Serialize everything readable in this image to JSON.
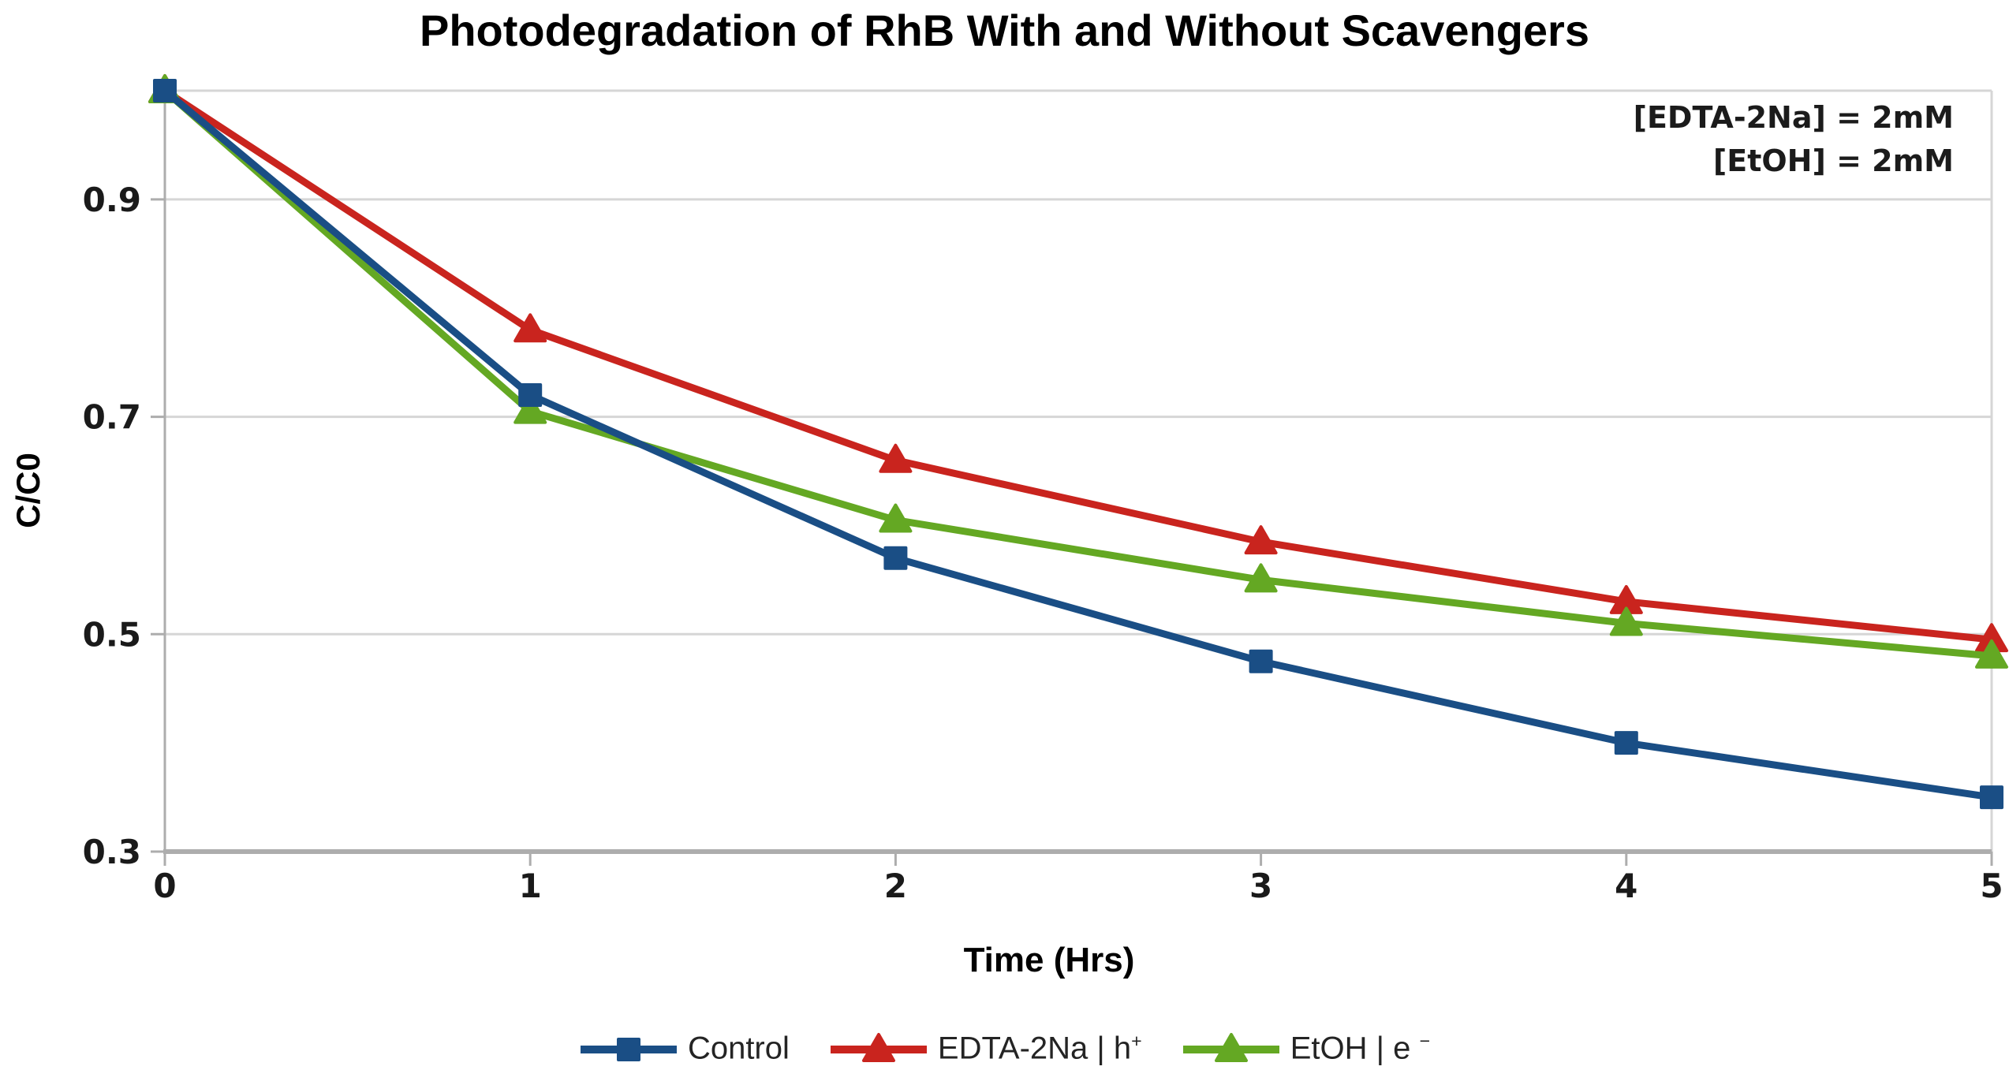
{
  "chart_data": {
    "type": "line",
    "title": "Photodegradation of RhB With and Without Scavengers",
    "xlabel": "Time (Hrs)",
    "ylabel": "C/C0",
    "x": [
      0,
      1,
      2,
      3,
      4,
      5
    ],
    "xlim": [
      0,
      5
    ],
    "ylim": [
      0.3,
      1.0
    ],
    "xticks": [
      0,
      1,
      2,
      3,
      4,
      5
    ],
    "xtick_labels": [
      "0",
      "1",
      "2",
      "3",
      "4",
      "5"
    ],
    "yticks": [
      0.3,
      0.5,
      0.7,
      0.9
    ],
    "ytick_labels": [
      "0.3",
      "0.5",
      "0.7",
      "0.9"
    ],
    "grid": true,
    "legend_position": "bottom-center",
    "annotation": {
      "lines": [
        "[EDTA-2Na] = 2mM",
        "[EtOH] = 2mM"
      ]
    },
    "colors": {
      "grid": "#D6D6D6",
      "axis": "#ADADAD",
      "tick_text": "#1A1A1A"
    },
    "series": [
      {
        "id": "control",
        "name": "Control",
        "label_base": "Control",
        "label_sup": "",
        "marker": "square",
        "color": "#1A4E85",
        "values": [
          1.0,
          0.72,
          0.57,
          0.475,
          0.4,
          0.35
        ]
      },
      {
        "id": "edta-2na",
        "name": "EDTA-2Na | h+",
        "label_base": "EDTA-2Na | h",
        "label_sup": "+",
        "marker": "triangle",
        "color": "#C9241E",
        "values": [
          1.0,
          0.78,
          0.66,
          0.585,
          0.53,
          0.495
        ]
      },
      {
        "id": "etoh",
        "name": "EtOH | e-",
        "label_base": "EtOH | e ",
        "label_sup": "−",
        "marker": "triangle",
        "color": "#64A823",
        "values": [
          1.0,
          0.705,
          0.605,
          0.55,
          0.51,
          0.48
        ]
      }
    ]
  }
}
